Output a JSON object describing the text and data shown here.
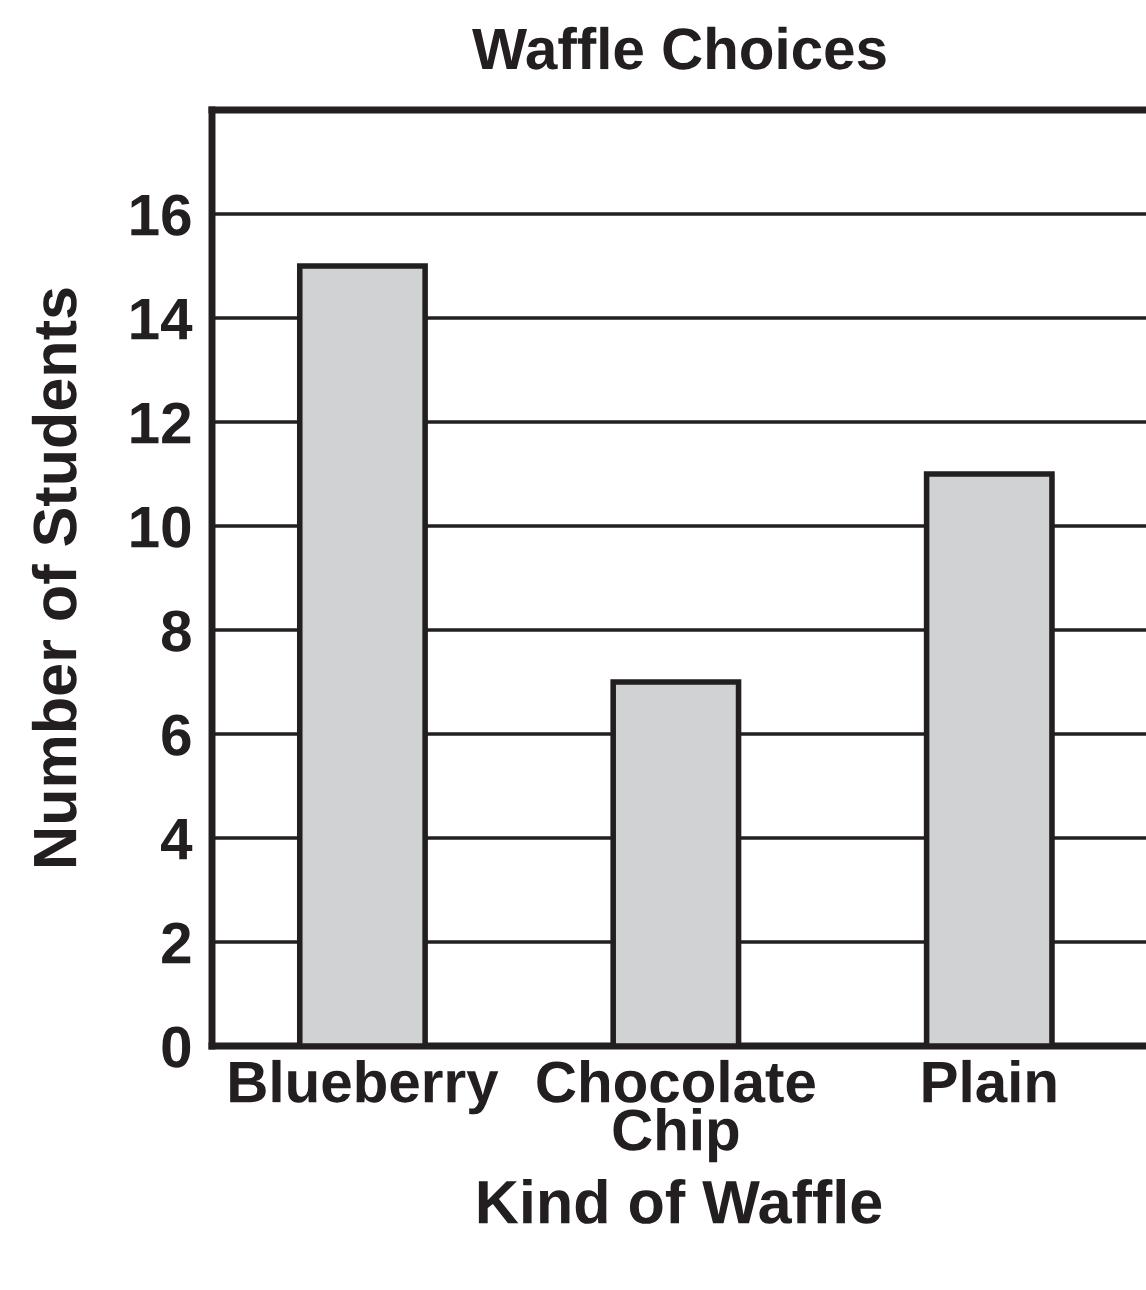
{
  "chart_data": {
    "type": "bar",
    "title": "Waffle Choices",
    "xlabel": "Kind of Waffle",
    "ylabel": "Number of Students",
    "categories": [
      "Blueberry",
      "Chocolate\nChip",
      "Plain"
    ],
    "values": [
      15,
      7,
      11
    ],
    "color": "#d1d2d4",
    "ylim": [
      0,
      18
    ],
    "yticks": [
      0,
      2,
      4,
      6,
      8,
      10,
      12,
      14,
      16
    ],
    "grid": "y"
  }
}
